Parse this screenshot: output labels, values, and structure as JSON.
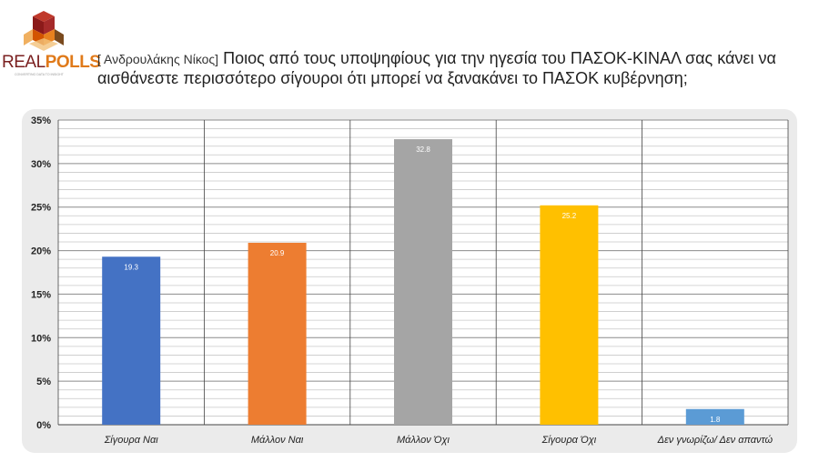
{
  "logo": {
    "name_part1": "REAL",
    "name_part2": "POLLS",
    "tagline": "CONVERTING DATA TO INSIGHT",
    "colors": {
      "red": "#8b1a1a",
      "orange": "#e8811f",
      "brown": "#7a4a1e"
    }
  },
  "question": {
    "prefix": "[ Ανδρουλάκης Νίκος]",
    "text": "Ποιος από τους υποψηφίους για την ηγεσία του ΠΑΣΟΚ-ΚΙΝΑΛ σας κάνει να αισθάνεστε περισσότερο σίγουροι ότι μπορεί να ξανακάνει το ΠΑΣΟΚ κυβέρνηση;"
  },
  "chart_data": {
    "type": "bar",
    "categories": [
      "Σίγουρα Ναι",
      "Μάλλον Ναι",
      "Μάλλον Όχι",
      "Σίγουρα Όχι",
      "Δεν γνωρίζω/ Δεν απαντώ"
    ],
    "values": [
      19.3,
      20.9,
      32.8,
      25.2,
      1.8
    ],
    "data_labels": [
      "19.3",
      "20.9",
      "32.8",
      "25.2",
      "1.8"
    ],
    "colors": [
      "#4472c4",
      "#ed7d31",
      "#a5a5a5",
      "#ffc000",
      "#5b9bd5"
    ],
    "ylim": [
      0,
      35
    ],
    "yticks": [
      0,
      5,
      10,
      15,
      20,
      25,
      30,
      35
    ],
    "ytick_labels": [
      "0%",
      "5%",
      "10%",
      "15%",
      "20%",
      "25%",
      "30%",
      "35%"
    ],
    "minor_grid_step": 1,
    "grid": true,
    "title": "",
    "xlabel": "",
    "ylabel": ""
  }
}
